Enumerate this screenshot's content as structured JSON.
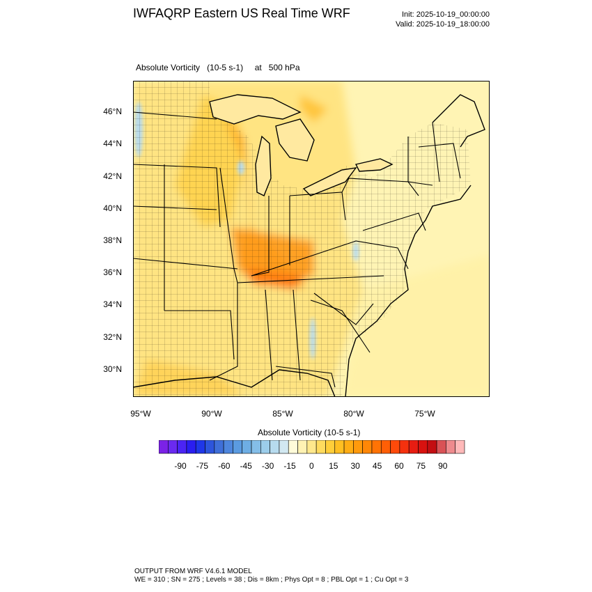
{
  "header": {
    "title": "IWFAQRP Eastern US Real Time WRF",
    "init": "Init: 2025-10-19_00:00:00",
    "valid": "Valid: 2025-10-19_18:00:00"
  },
  "plot": {
    "field": "Absolute Vorticity",
    "units": "(10-5 s-1)",
    "at": "at",
    "level": "500 hPa",
    "lat_labels": [
      "46°N",
      "44°N",
      "42°N",
      "40°N",
      "38°N",
      "36°N",
      "34°N",
      "32°N",
      "30°N"
    ],
    "lon_labels": [
      "95°W",
      "90°W",
      "85°W",
      "80°W",
      "75°W"
    ]
  },
  "colorbar": {
    "title": "Absolute Vorticity  (10-5 s-1)",
    "tick_labels": [
      "-90",
      "-75",
      "-60",
      "-45",
      "-30",
      "-15",
      "0",
      "15",
      "30",
      "45",
      "60",
      "75",
      "90"
    ],
    "colors": [
      "#7b22e6",
      "#6a2af0",
      "#4b24f4",
      "#2a1ef0",
      "#1f37e8",
      "#2d55dc",
      "#3f6fd8",
      "#4e86dd",
      "#5b9be0",
      "#6eaee4",
      "#84bee8",
      "#9ccdea",
      "#b7dbee",
      "#d2e8f1",
      "#fffbd9",
      "#fff2b3",
      "#ffe88c",
      "#ffdb5e",
      "#ffce3a",
      "#ffbf22",
      "#ffad14",
      "#ff9a0c",
      "#ff8707",
      "#ff7305",
      "#ff5f06",
      "#ff4a0a",
      "#f5310e",
      "#e71d12",
      "#d8120f",
      "#c30e12",
      "#d95256",
      "#ee8a8d",
      "#ffb9b9"
    ]
  },
  "footer": {
    "line1": "OUTPUT FROM WRF V4.6.1 MODEL",
    "line2": "WE = 310 ; SN = 275 ; Levels = 38 ; Dis = 8km ; Phys Opt = 8 ; PBL Opt = 1 ; Cu Opt = 3"
  }
}
